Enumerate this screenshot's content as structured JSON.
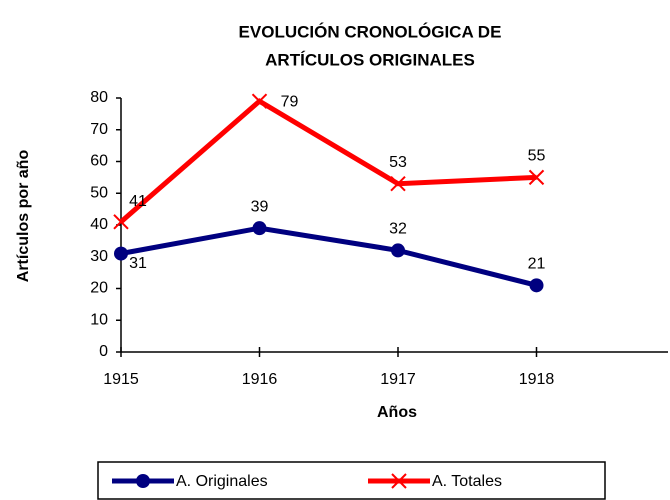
{
  "chart_data": {
    "type": "line",
    "title": [
      "EVOLUCIÓN CRONOLÓGICA DE",
      "ARTÍCULOS ORIGINALES"
    ],
    "x_label": "Años",
    "y_label": "Artículos por año",
    "x": [
      1915,
      1916,
      1917,
      1918
    ],
    "xlim": [
      1915,
      1919
    ],
    "xticks": [
      1915,
      1916,
      1917,
      1918
    ],
    "ylim": [
      0,
      80
    ],
    "yticks": [
      0,
      10,
      20,
      30,
      40,
      50,
      60,
      70,
      80
    ],
    "series": [
      {
        "name": "A. Originales",
        "color": "#000080",
        "marker": "circle",
        "values": [
          31,
          39,
          32,
          21
        ]
      },
      {
        "name": "A. Totales",
        "color": "#ff0000",
        "marker": "x",
        "values": [
          41,
          79,
          53,
          55
        ]
      }
    ],
    "legend": "bottom"
  }
}
